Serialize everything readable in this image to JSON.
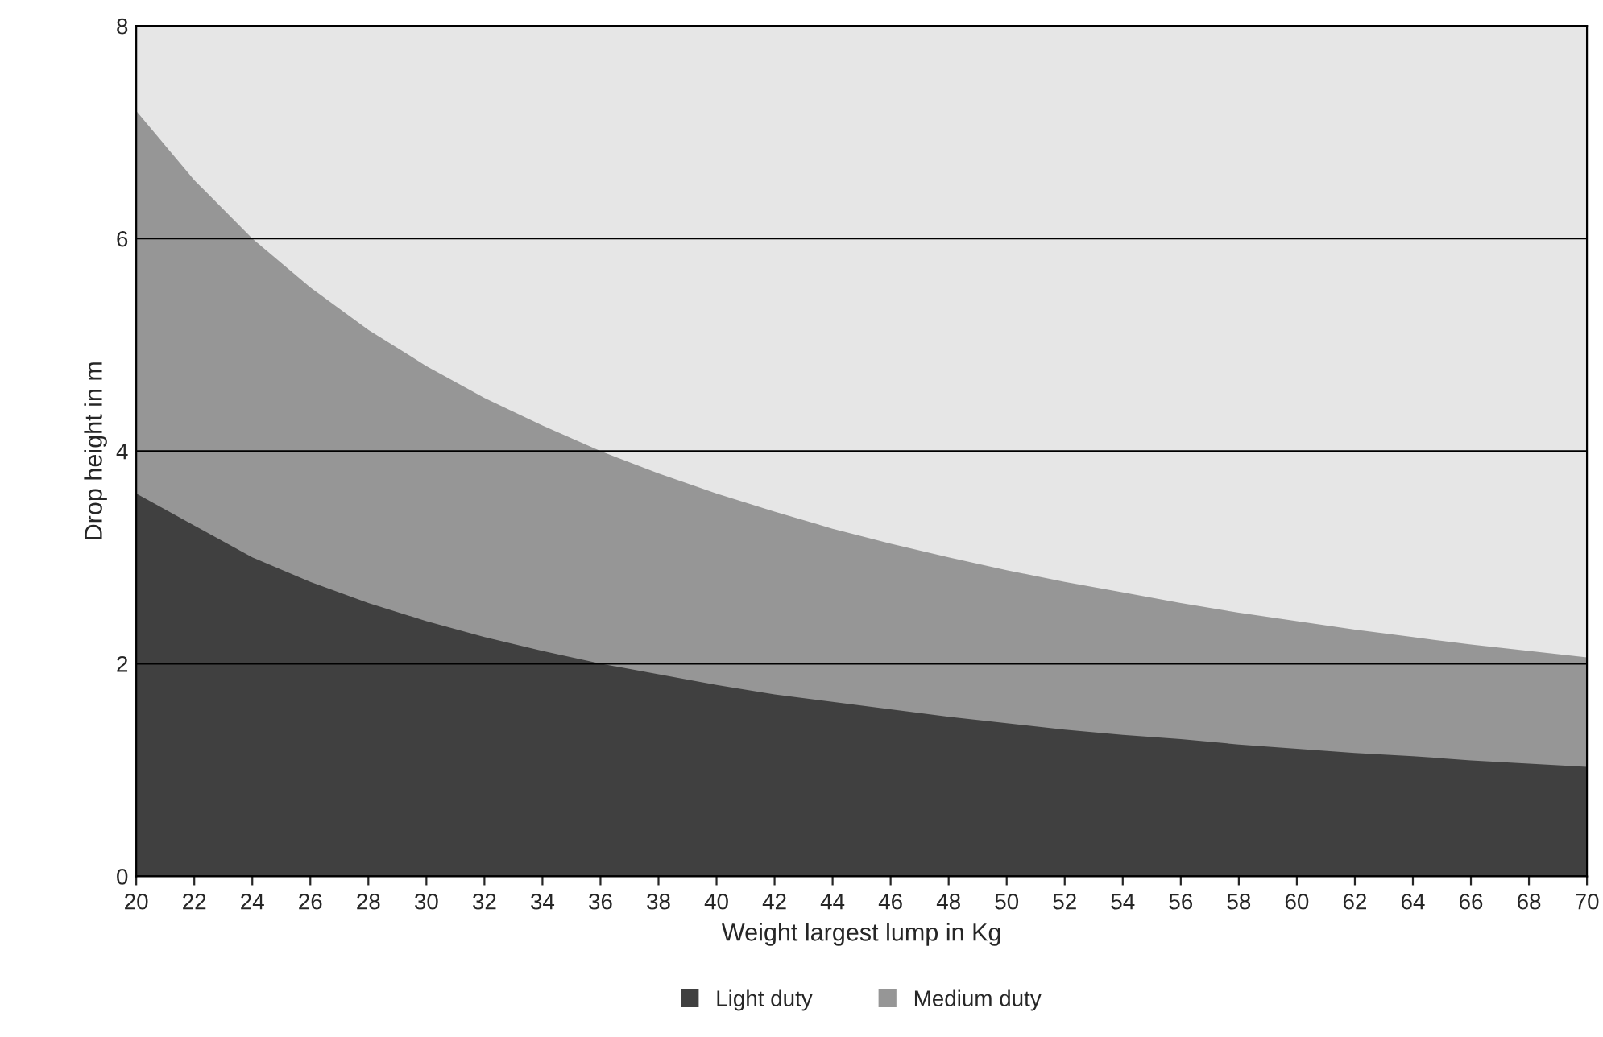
{
  "chart_data": {
    "type": "area",
    "xlabel": "Weight largest lump in Kg",
    "ylabel": "Drop height in m",
    "x": [
      20,
      22,
      24,
      26,
      28,
      30,
      32,
      34,
      36,
      38,
      40,
      42,
      44,
      46,
      48,
      50,
      52,
      54,
      56,
      58,
      60,
      62,
      64,
      66,
      68,
      70
    ],
    "series": [
      {
        "name": "Light duty",
        "color": "#404040",
        "values": [
          3.6,
          3.3,
          3.0,
          2.77,
          2.57,
          2.4,
          2.25,
          2.12,
          2.0,
          1.9,
          1.8,
          1.71,
          1.64,
          1.57,
          1.5,
          1.44,
          1.38,
          1.33,
          1.29,
          1.24,
          1.2,
          1.16,
          1.13,
          1.09,
          1.06,
          1.03
        ]
      },
      {
        "name": "Medium duty",
        "color": "#969696",
        "values": [
          7.2,
          6.55,
          6.0,
          5.54,
          5.14,
          4.8,
          4.5,
          4.24,
          4.0,
          3.79,
          3.6,
          3.43,
          3.27,
          3.13,
          3.0,
          2.88,
          2.77,
          2.67,
          2.57,
          2.48,
          2.4,
          2.32,
          2.25,
          2.18,
          2.12,
          2.06
        ]
      }
    ],
    "xlim": [
      20,
      70
    ],
    "xticks": [
      20,
      22,
      24,
      26,
      28,
      30,
      32,
      34,
      36,
      38,
      40,
      42,
      44,
      46,
      48,
      50,
      52,
      54,
      56,
      58,
      60,
      62,
      64,
      66,
      68,
      70
    ],
    "ylim": [
      0,
      8
    ],
    "yticks": [
      0,
      2,
      4,
      6,
      8
    ],
    "grid": "y",
    "legend": "bottom"
  }
}
